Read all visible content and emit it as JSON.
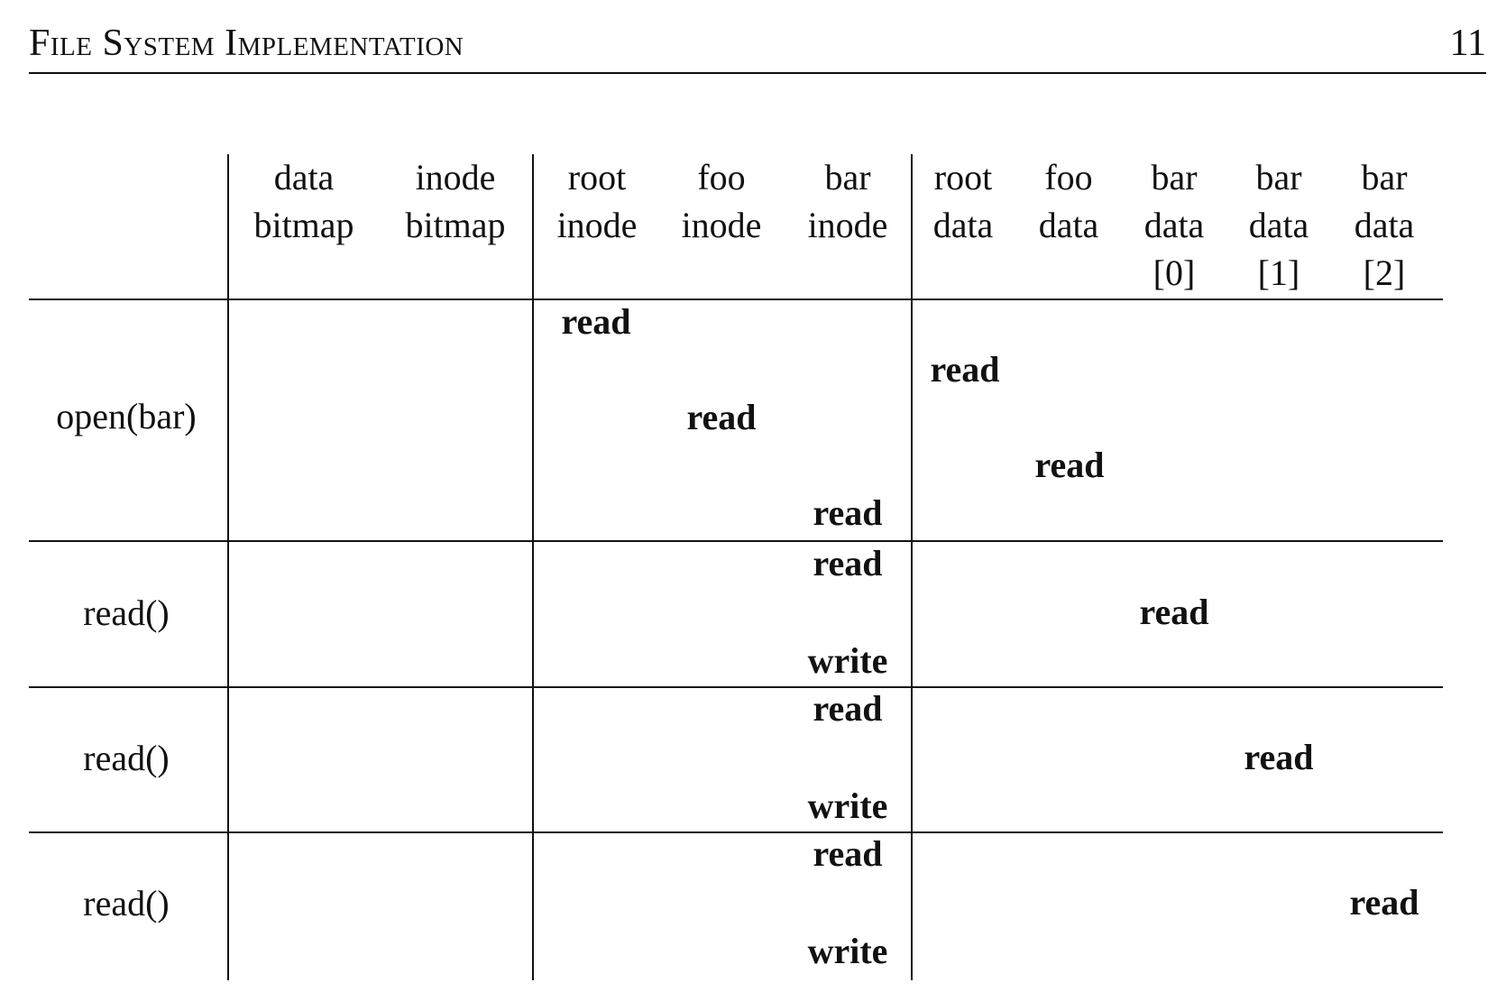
{
  "header": {
    "title": "File System Implementation",
    "page_number": "11"
  },
  "table": {
    "columns": [
      {
        "lines": [
          "data",
          "bitmap",
          ""
        ]
      },
      {
        "lines": [
          "inode",
          "bitmap",
          ""
        ]
      },
      {
        "lines": [
          "root",
          "inode",
          ""
        ]
      },
      {
        "lines": [
          "foo",
          "inode",
          ""
        ]
      },
      {
        "lines": [
          "bar",
          "inode",
          ""
        ]
      },
      {
        "lines": [
          "root",
          "data",
          ""
        ]
      },
      {
        "lines": [
          "foo",
          "data",
          ""
        ]
      },
      {
        "lines": [
          "bar",
          "data",
          "[0]"
        ]
      },
      {
        "lines": [
          "bar",
          "data",
          "[1]"
        ]
      },
      {
        "lines": [
          "bar",
          "data",
          "[2]"
        ]
      }
    ],
    "groups": [
      {
        "op": "open(bar)",
        "entries": [
          {
            "column": "root inode",
            "text": "read"
          },
          {
            "column": "root data",
            "text": "read"
          },
          {
            "column": "foo inode",
            "text": "read"
          },
          {
            "column": "foo data",
            "text": "read"
          },
          {
            "column": "bar inode",
            "text": "read"
          }
        ]
      },
      {
        "op": "read()",
        "entries": [
          {
            "column": "bar inode",
            "text": "read"
          },
          {
            "column": "bar data [0]",
            "text": "read"
          },
          {
            "column": "bar inode",
            "text": "write"
          }
        ]
      },
      {
        "op": "read()",
        "entries": [
          {
            "column": "bar inode",
            "text": "read"
          },
          {
            "column": "bar data [1]",
            "text": "read"
          },
          {
            "column": "bar inode",
            "text": "write"
          }
        ]
      },
      {
        "op": "read()",
        "entries": [
          {
            "column": "bar inode",
            "text": "read"
          },
          {
            "column": "bar data [2]",
            "text": "read"
          },
          {
            "column": "bar inode",
            "text": "write"
          }
        ]
      }
    ]
  }
}
